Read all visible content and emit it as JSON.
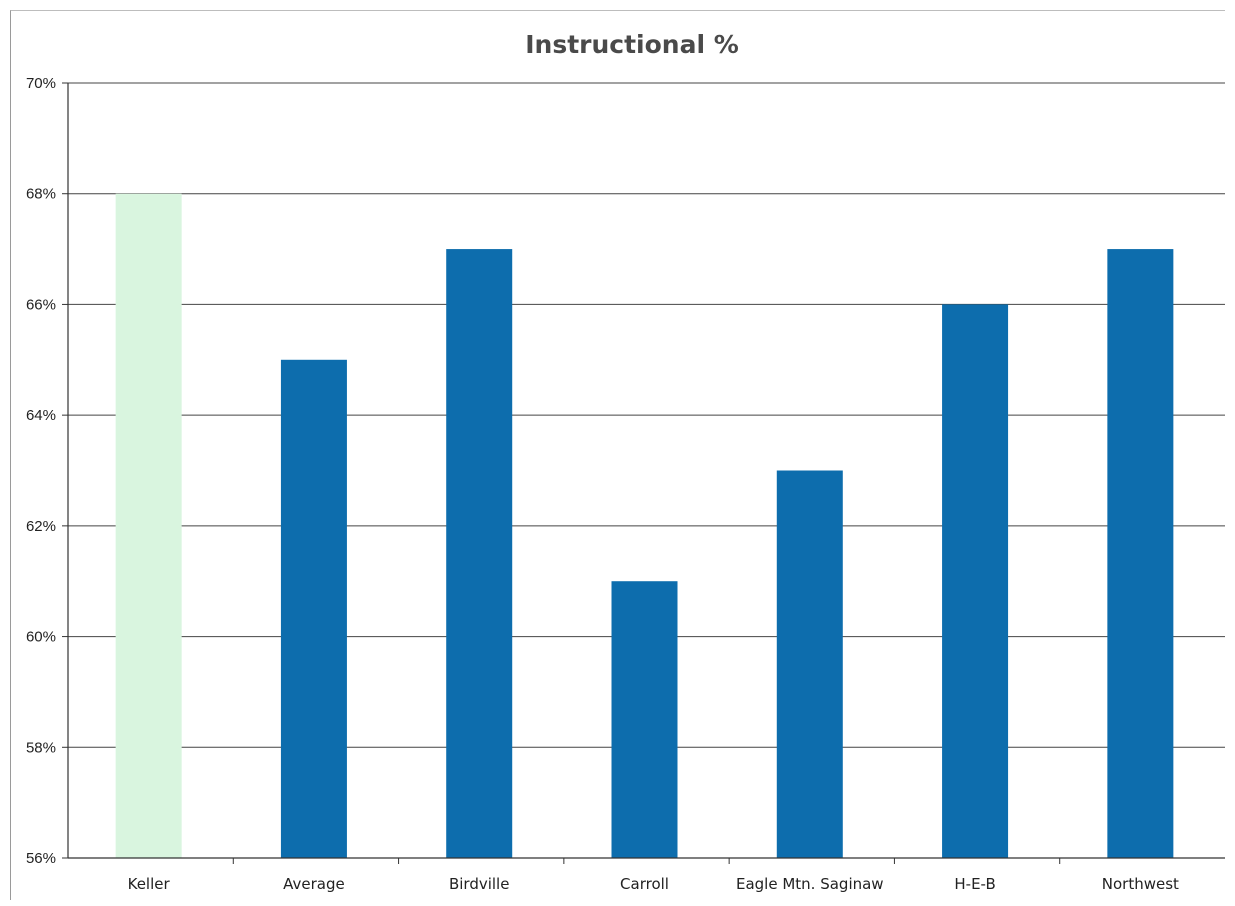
{
  "chart_data": {
    "type": "bar",
    "title": "Instructional %",
    "xlabel": "",
    "ylabel": "",
    "categories": [
      "Keller",
      "Average",
      "Birdville",
      "Carroll",
      "Eagle Mtn. Saginaw",
      "H-E-B",
      "Northwest"
    ],
    "values": [
      68.0,
      65.0,
      67.0,
      61.0,
      63.0,
      66.0,
      67.0
    ],
    "ylim": [
      56,
      70
    ],
    "y_ticks": [
      "56%",
      "58%",
      "60%",
      "62%",
      "64%",
      "66%",
      "68%",
      "70%"
    ],
    "y_tick_values": [
      56,
      58,
      60,
      62,
      64,
      66,
      68,
      70
    ],
    "grid": true,
    "legend": "none",
    "colors": {
      "highlight": "#d9f5df",
      "bar": "#0d6dad",
      "grid": "#444444",
      "title": "#4a4a4a"
    },
    "highlight_index": 0
  }
}
